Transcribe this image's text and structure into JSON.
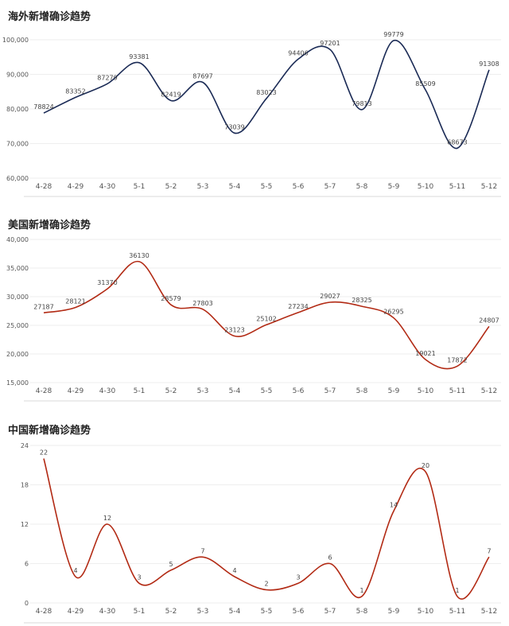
{
  "chart_data": [
    {
      "type": "line",
      "title": "海外新增确诊趋势",
      "categories": [
        "4-28",
        "4-29",
        "4-30",
        "5-1",
        "5-2",
        "5-3",
        "5-4",
        "5-5",
        "5-6",
        "5-7",
        "5-8",
        "5-9",
        "5-10",
        "5-11",
        "5-12"
      ],
      "series": [
        {
          "values": [
            78824,
            83352,
            87279,
            93381,
            82419,
            87697,
            73039,
            83023,
            94406,
            97201,
            79813,
            99779,
            85509,
            68673,
            91308
          ]
        }
      ],
      "yticks": [
        "60,000",
        "70,000",
        "80,000",
        "90,000",
        "100,000"
      ],
      "ylim": [
        60000,
        100000
      ],
      "color": "#1a2a55"
    },
    {
      "type": "line",
      "title": "美国新增确诊趋势",
      "categories": [
        "4-28",
        "4-29",
        "4-30",
        "5-1",
        "5-2",
        "5-3",
        "5-4",
        "5-5",
        "5-6",
        "5-7",
        "5-8",
        "5-9",
        "5-10",
        "5-11",
        "5-12"
      ],
      "series": [
        {
          "values": [
            27187,
            28121,
            31370,
            36130,
            28579,
            27803,
            23123,
            25102,
            27234,
            29027,
            28325,
            26295,
            19021,
            17872,
            24807
          ]
        }
      ],
      "yticks": [
        "15,000",
        "20,000",
        "25,000",
        "30,000",
        "35,000",
        "40,000"
      ],
      "ylim": [
        15000,
        40000
      ],
      "color": "#b22a14"
    },
    {
      "type": "line",
      "title": "中国新增确诊趋势",
      "categories": [
        "4-28",
        "4-29",
        "4-30",
        "5-1",
        "5-2",
        "5-3",
        "5-4",
        "5-5",
        "5-6",
        "5-7",
        "5-8",
        "5-9",
        "5-10",
        "5-11",
        "5-12"
      ],
      "series": [
        {
          "values": [
            22,
            4,
            12,
            3,
            5,
            7,
            4,
            2,
            3,
            6,
            1,
            14,
            20,
            1,
            7
          ]
        }
      ],
      "yticks": [
        "0",
        "6",
        "12",
        "18",
        "24"
      ],
      "ylim": [
        0,
        24
      ],
      "color": "#b22a14"
    }
  ]
}
